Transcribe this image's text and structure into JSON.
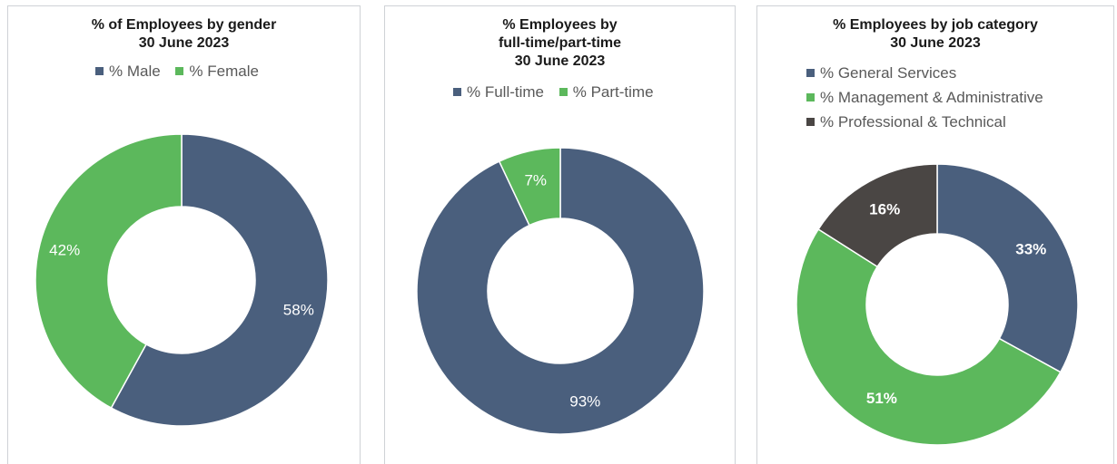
{
  "chart_data": [
    {
      "type": "pie",
      "title": "% of Employees by gender",
      "subtitle": "30 June 2023",
      "categories": [
        "% Male",
        "% Female"
      ],
      "values": [
        58,
        42
      ],
      "data_labels": [
        "58%",
        "42%"
      ],
      "colors": [
        "#4a5f7d",
        "#5cb85c"
      ],
      "legend_position": "top",
      "hole": true
    },
    {
      "type": "pie",
      "title": "% Employees by",
      "title_line2": "full-time/part-time",
      "subtitle": "30 June 2023",
      "categories": [
        "% Full-time",
        "% Part-time"
      ],
      "values": [
        93,
        7
      ],
      "data_labels": [
        "93%",
        "7%"
      ],
      "colors": [
        "#4a5f7d",
        "#5cb85c"
      ],
      "legend_position": "top",
      "hole": true
    },
    {
      "type": "pie",
      "title": "% Employees by job category",
      "subtitle": "30 June 2023",
      "categories": [
        "% General Services",
        "% Management & Administrative",
        "% Professional & Technical"
      ],
      "values": [
        33,
        51,
        16
      ],
      "data_labels": [
        "33%",
        "51%",
        "16%"
      ],
      "colors": [
        "#4a5f7d",
        "#5cb85c",
        "#4a4644"
      ],
      "legend_position": "top",
      "hole": true
    }
  ]
}
